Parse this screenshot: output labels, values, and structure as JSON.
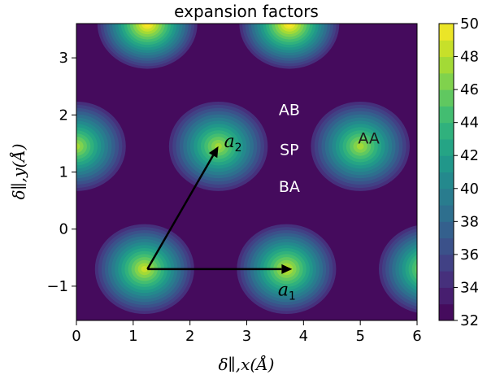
{
  "chart_data": {
    "type": "heatmap",
    "title": "expansion factors",
    "xlabel": "δ∥,x(Å)",
    "ylabel": "δ∥,y(Å)",
    "xlim": [
      0,
      6
    ],
    "ylim": [
      -1.6,
      3.6
    ],
    "xticks": [
      0,
      1,
      2,
      3,
      4,
      5,
      6
    ],
    "yticks": [
      -1,
      0,
      1,
      2,
      3
    ],
    "colorbar": {
      "min": 32,
      "max": 50,
      "ticks": [
        32,
        34,
        36,
        38,
        40,
        42,
        44,
        46,
        48,
        50
      ],
      "colormap": "viridis",
      "levels": [
        32,
        33,
        34,
        35,
        36,
        37,
        38,
        39,
        40,
        41,
        42,
        43,
        44,
        45,
        46,
        47,
        48,
        49,
        50
      ]
    },
    "background_value": 33,
    "peaks": [
      {
        "x": 1.2,
        "y": -0.7,
        "value": 48
      },
      {
        "x": 3.7,
        "y": -0.7,
        "value": 48
      },
      {
        "x": 6.2,
        "y": -0.7,
        "value": 48
      },
      {
        "x": 0.0,
        "y": 1.45,
        "value": 47
      },
      {
        "x": 2.5,
        "y": 1.45,
        "value": 47
      },
      {
        "x": 5.0,
        "y": 1.45,
        "value": 47
      },
      {
        "x": 1.25,
        "y": 3.6,
        "value": 50
      },
      {
        "x": 3.75,
        "y": 3.6,
        "value": 50
      }
    ],
    "annotations": [
      {
        "text": "AB",
        "x": 3.75,
        "y": 2.1,
        "color": "#ffffff"
      },
      {
        "text": "SP",
        "x": 3.75,
        "y": 1.4,
        "color": "#ffffff"
      },
      {
        "text": "BA",
        "x": 3.75,
        "y": 0.75,
        "color": "#ffffff"
      },
      {
        "text": "AA",
        "x": 5.15,
        "y": 1.6,
        "color": "#1a1a1a"
      }
    ],
    "vectors": [
      {
        "label": "a",
        "subscript": "1",
        "from": [
          1.25,
          -0.7
        ],
        "to": [
          3.8,
          -0.7
        ],
        "label_at": [
          3.55,
          -1.05
        ]
      },
      {
        "label": "a",
        "subscript": "2",
        "from": [
          1.25,
          -0.7
        ],
        "to": [
          2.5,
          1.45
        ],
        "label_at": [
          2.6,
          1.55
        ]
      }
    ]
  }
}
